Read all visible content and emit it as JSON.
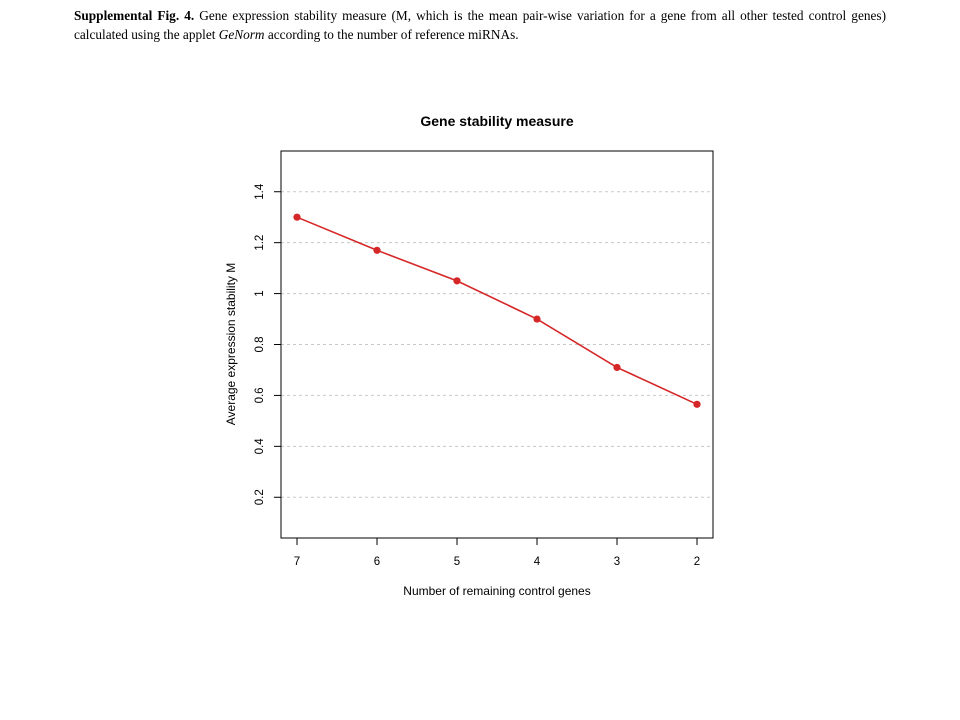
{
  "caption": {
    "lead": "Supplemental Fig. 4.",
    "text_before": " Gene expression stability measure (M, which is the mean pair-wise variation for a gene from all other tested control genes) calculated using the applet ",
    "applet": "GeNorm",
    "text_after": " according to the number of reference miRNAs."
  },
  "chart_data": {
    "type": "line",
    "title": "Gene stability measure",
    "xlabel": "Number of remaining control genes",
    "ylabel": "Average expression stability M",
    "categories": [
      "7",
      "6",
      "5",
      "4",
      "3",
      "2"
    ],
    "series": [
      {
        "values": [
          1.3,
          1.17,
          1.05,
          0.9,
          0.71,
          0.565
        ],
        "color": "#d62728"
      }
    ],
    "ylim": [
      0.04,
      1.56
    ],
    "yticks": [
      0.2,
      0.4,
      0.6,
      0.8,
      1.0,
      1.2,
      1.4
    ],
    "ytick_labels": [
      "0.2",
      "0.4",
      "0.6",
      "0.8",
      "1",
      "1.2",
      "1.4"
    ],
    "grid": true,
    "grid_style": "dashed horizontal",
    "marker": "filled circle"
  }
}
